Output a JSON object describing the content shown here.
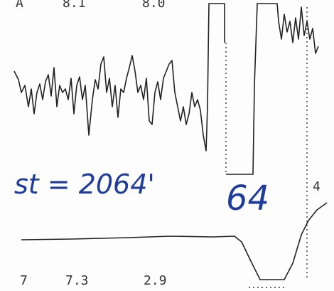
{
  "top_labels": [
    "A",
    "8.1",
    "8.0"
  ],
  "annotation": "st = 2064'",
  "annotation_2": "64",
  "side_label": "4",
  "bottom_labels": [
    "7",
    "7.3",
    "2.9"
  ]
}
